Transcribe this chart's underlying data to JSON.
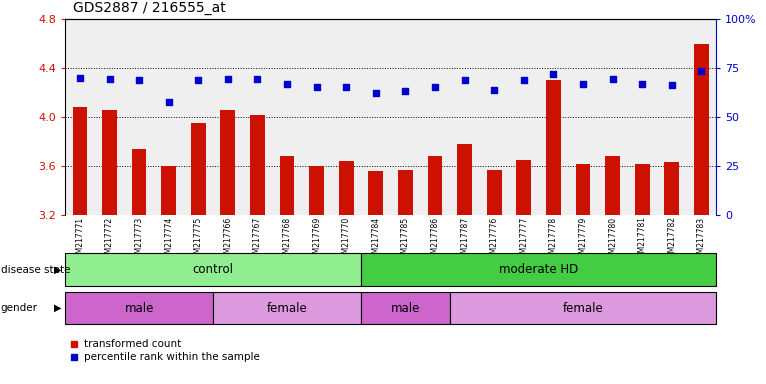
{
  "title": "GDS2887 / 216555_at",
  "samples": [
    "GSM217771",
    "GSM217772",
    "GSM217773",
    "GSM217774",
    "GSM217775",
    "GSM217766",
    "GSM217767",
    "GSM217768",
    "GSM217769",
    "GSM217770",
    "GSM217784",
    "GSM217785",
    "GSM217786",
    "GSM217787",
    "GSM217776",
    "GSM217777",
    "GSM217778",
    "GSM217779",
    "GSM217780",
    "GSM217781",
    "GSM217782",
    "GSM217783"
  ],
  "bar_values": [
    4.08,
    4.06,
    3.74,
    3.6,
    3.95,
    4.06,
    4.02,
    3.68,
    3.6,
    3.64,
    3.56,
    3.57,
    3.68,
    3.78,
    3.57,
    3.65,
    4.3,
    3.62,
    3.68,
    3.62,
    3.63,
    4.6
  ],
  "dot_values": [
    4.32,
    4.31,
    4.3,
    4.12,
    4.3,
    4.31,
    4.31,
    4.27,
    4.25,
    4.25,
    4.2,
    4.21,
    4.25,
    4.3,
    4.22,
    4.3,
    4.35,
    4.27,
    4.31,
    4.27,
    4.26,
    4.38
  ],
  "ylim": [
    3.2,
    4.8
  ],
  "yticks": [
    3.2,
    3.6,
    4.0,
    4.4,
    4.8
  ],
  "right_yticks": [
    0,
    25,
    50,
    75,
    100
  ],
  "bar_color": "#cc1100",
  "dot_color": "#0000cc",
  "control_color": "#90ee90",
  "moderate_hd_color": "#44cc44",
  "male_color": "#cc66cc",
  "female_color": "#dd99dd",
  "legend_bar_label": "transformed count",
  "legend_dot_label": "percentile rank within the sample",
  "ctrl_range": [
    0,
    10
  ],
  "mod_range": [
    10,
    22
  ],
  "gender_groups": [
    [
      0,
      5,
      "male"
    ],
    [
      5,
      10,
      "female"
    ],
    [
      10,
      13,
      "male"
    ],
    [
      13,
      22,
      "female"
    ]
  ]
}
